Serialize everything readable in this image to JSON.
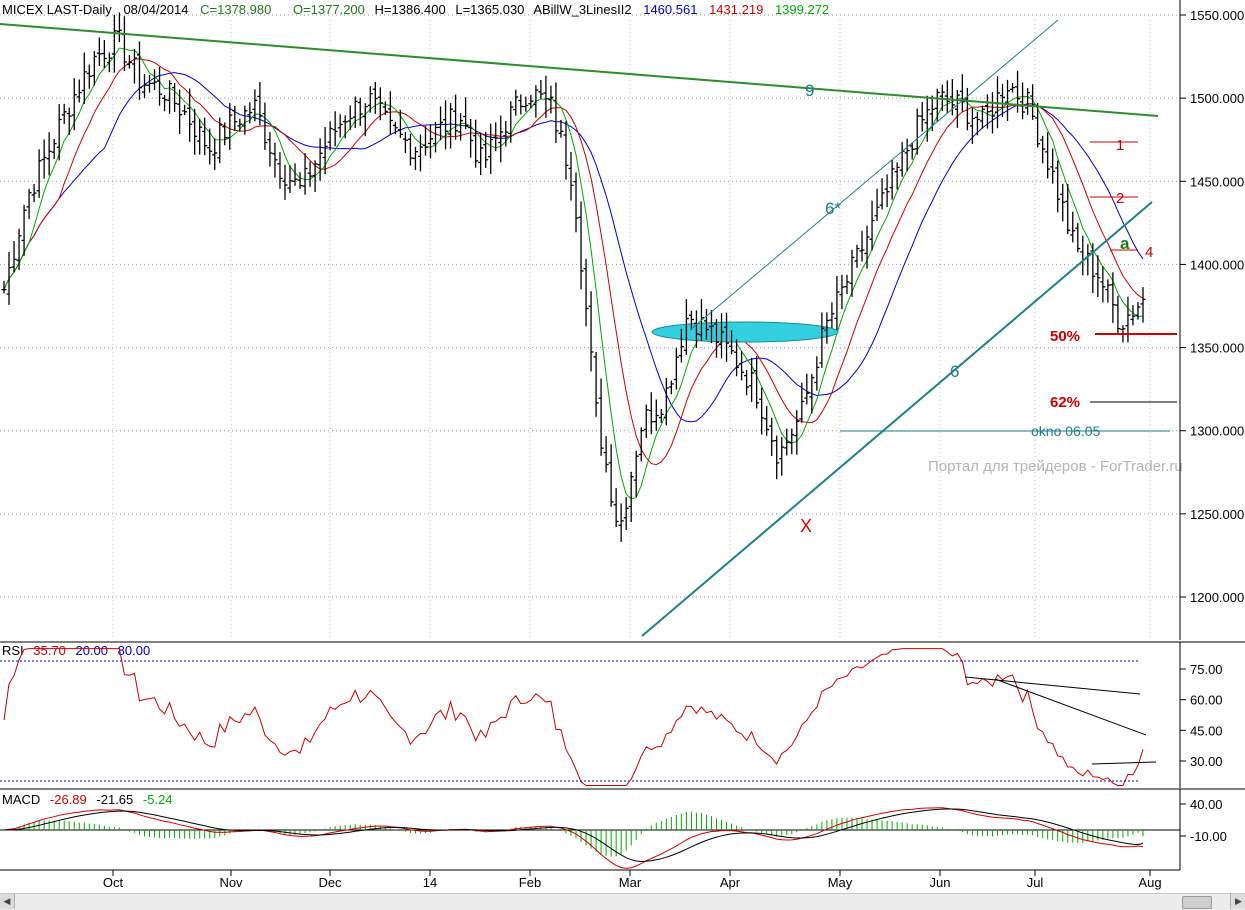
{
  "header": {
    "symbol": "MICEX LAST-Daily",
    "date": "08/04/2014",
    "close": "C=1378.980",
    "open": "O=1377.200",
    "high": "H=1386.400",
    "low": "L=1365.030",
    "indicator_name": "ABillW_3LinesII2",
    "ind_blue": "1460.561",
    "ind_red": "1431.219",
    "ind_green": "1399.272"
  },
  "colors": {
    "blue": "#0000cc",
    "red": "#cc0000",
    "green": "#00aa00",
    "dark_green": "#1e7a1e",
    "teal": "#1f7f86",
    "trend_green": "#2e8b2e",
    "cyan_fill": "#33d0e0",
    "bar": "#000000"
  },
  "price_axis": {
    "labels": [
      "1550.000",
      "1500.000",
      "1450.000",
      "1400.000",
      "1350.000",
      "1300.000",
      "1250.000",
      "1200.000"
    ]
  },
  "time_axis": {
    "labels": [
      "Oct",
      "Nov",
      "Dec",
      "14",
      "Feb",
      "Mar",
      "Apr",
      "May",
      "Jun",
      "Jul",
      "Aug"
    ]
  },
  "annotations": {
    "wave9": "9",
    "wave6star": "6*",
    "wave6": "6",
    "waveX": "X",
    "wave_a": "a",
    "level1": "1",
    "level2": "2",
    "level4": "4",
    "fib50": "50%",
    "fib62": "62%",
    "gap": "okno 06.05",
    "watermark": "Портал для трейдеров - ForTrader.ru"
  },
  "rsi": {
    "label": "RSI",
    "value": "35.70",
    "low": "20.00",
    "high": "80.00",
    "axis_labels": [
      "75.00",
      "60.00",
      "45.00",
      "30.00"
    ]
  },
  "macd": {
    "label": "MACD",
    "value": "-26.89",
    "signal": "-21.65",
    "hist": "-5.24",
    "axis_labels": [
      "40.00",
      "-10.00"
    ]
  },
  "chart_data": {
    "type": "ohlc",
    "title": "MICEX LAST-Daily",
    "x_range": [
      "2013-09",
      "2014-08-04"
    ],
    "ylim": [
      1180,
      1560
    ],
    "y_ticks": [
      1200,
      1250,
      1300,
      1350,
      1400,
      1450,
      1500,
      1550
    ],
    "last_bar": {
      "date": "08/04/2014",
      "open": 1377.2,
      "high": 1386.4,
      "low": 1365.03,
      "close": 1378.98
    },
    "close_path": [
      {
        "x": "Sep",
        "y": 1385
      },
      {
        "x": "Sep",
        "y": 1440
      },
      {
        "x": "Sep",
        "y": 1470
      },
      {
        "x": "Oct",
        "y": 1500
      },
      {
        "x": "Oct",
        "y": 1525
      },
      {
        "x": "Oct",
        "y": 1535
      },
      {
        "x": "Oct",
        "y": 1510
      },
      {
        "x": "Nov",
        "y": 1505
      },
      {
        "x": "Nov",
        "y": 1490
      },
      {
        "x": "Nov",
        "y": 1470
      },
      {
        "x": "Nov",
        "y": 1485
      },
      {
        "x": "Nov",
        "y": 1495
      },
      {
        "x": "Nov",
        "y": 1460
      },
      {
        "x": "Dec",
        "y": 1445
      },
      {
        "x": "Dec",
        "y": 1470
      },
      {
        "x": "Dec",
        "y": 1490
      },
      {
        "x": "Dec",
        "y": 1500
      },
      {
        "x": "Dec",
        "y": 1480
      },
      {
        "x": "14",
        "y": 1470
      },
      {
        "x": "14",
        "y": 1480
      },
      {
        "x": "14",
        "y": 1490
      },
      {
        "x": "Feb",
        "y": 1460
      },
      {
        "x": "Feb",
        "y": 1485
      },
      {
        "x": "Feb",
        "y": 1505
      },
      {
        "x": "Feb",
        "y": 1495
      },
      {
        "x": "Feb",
        "y": 1450
      },
      {
        "x": "Mar",
        "y": 1310
      },
      {
        "x": "Mar",
        "y": 1240
      },
      {
        "x": "Mar",
        "y": 1305
      },
      {
        "x": "Mar",
        "y": 1320
      },
      {
        "x": "Apr",
        "y": 1370
      },
      {
        "x": "Apr",
        "y": 1360
      },
      {
        "x": "Apr",
        "y": 1345
      },
      {
        "x": "Apr",
        "y": 1325
      },
      {
        "x": "Apr",
        "y": 1285
      },
      {
        "x": "May",
        "y": 1310
      },
      {
        "x": "May",
        "y": 1360
      },
      {
        "x": "May",
        "y": 1390
      },
      {
        "x": "May",
        "y": 1420
      },
      {
        "x": "Jun",
        "y": 1450
      },
      {
        "x": "Jun",
        "y": 1480
      },
      {
        "x": "Jun",
        "y": 1500
      },
      {
        "x": "Jun",
        "y": 1495
      },
      {
        "x": "Jul",
        "y": 1485
      },
      {
        "x": "Jul",
        "y": 1510
      },
      {
        "x": "Jul",
        "y": 1495
      },
      {
        "x": "Jul",
        "y": 1455
      },
      {
        "x": "Jul",
        "y": 1410
      },
      {
        "x": "Jul",
        "y": 1395
      },
      {
        "x": "Aug",
        "y": 1365
      },
      {
        "x": "Aug",
        "y": 1379
      }
    ],
    "levels": {
      "fib50": 1358,
      "fib62": 1317,
      "gap": 1300,
      "level1": 1474,
      "level2": 1440,
      "level4": 1408
    }
  }
}
